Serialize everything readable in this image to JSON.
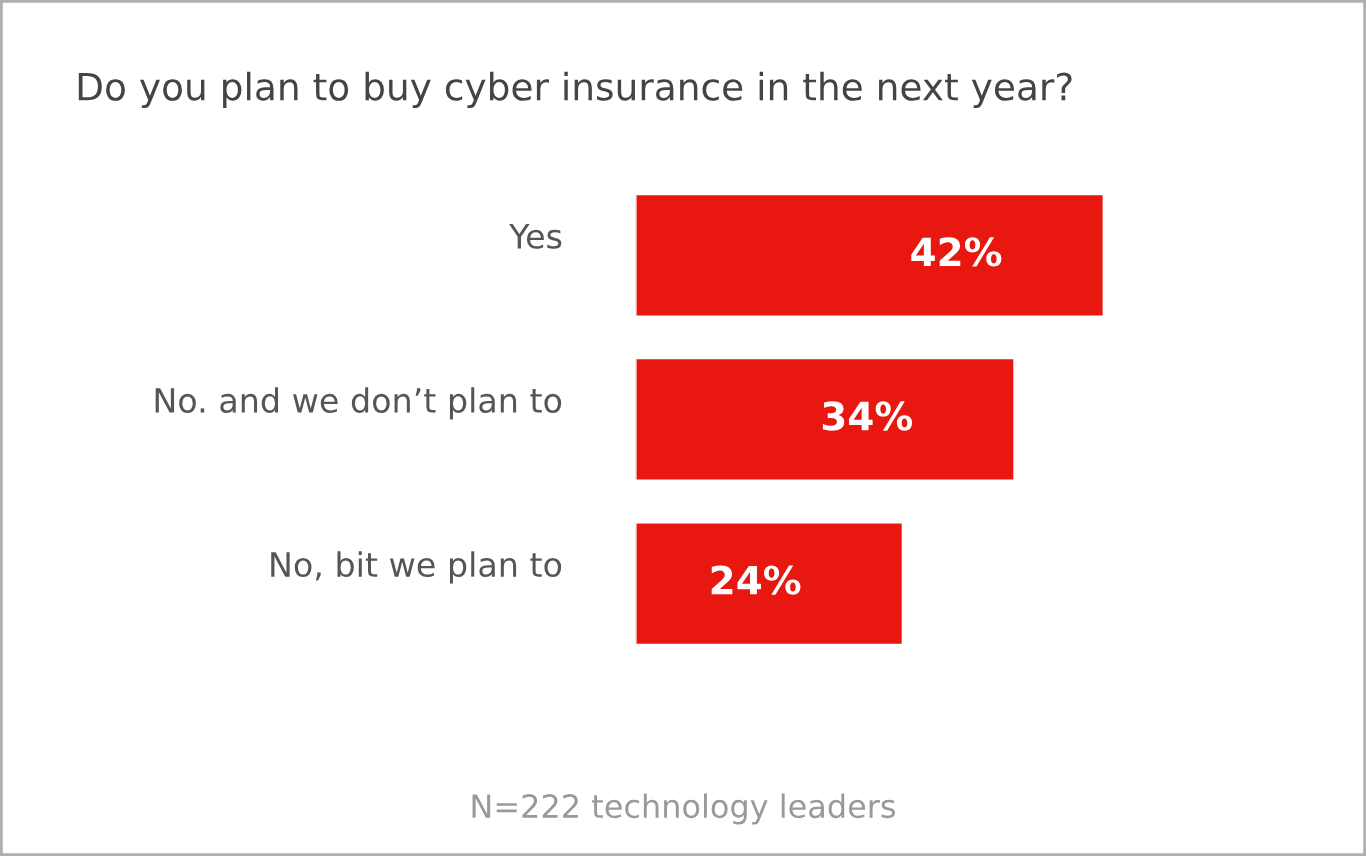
{
  "chart_data": {
    "type": "bar",
    "orientation": "horizontal",
    "title": "Do you plan to buy cyber insurance in the next year?",
    "categories": [
      "Yes",
      "No. and we don’t plan to",
      "No, bit we plan to"
    ],
    "values": [
      42,
      34,
      24
    ],
    "value_labels": [
      "42%",
      "34%",
      "24%"
    ],
    "color": "#e8170f",
    "grid": false,
    "legend": false,
    "annotations": [
      "N=222 technology leaders"
    ]
  }
}
